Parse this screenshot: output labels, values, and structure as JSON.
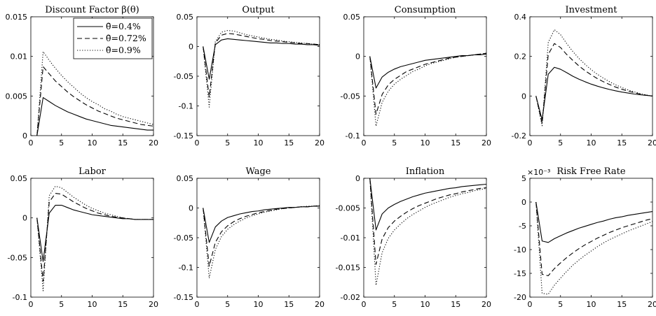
{
  "figure": {
    "layout": "2x4 grid of line charts"
  },
  "legend": {
    "position": "top-right of first panel",
    "entries": [
      {
        "label": "θ̄=0.4%",
        "style": "solid"
      },
      {
        "label": "θ̄=0.72%",
        "style": "dashed"
      },
      {
        "label": "θ̄=0.9%",
        "style": "dotted"
      }
    ]
  },
  "chart_data": [
    {
      "type": "line",
      "title": "Discount Factor β(θ)",
      "xlim": [
        0,
        20
      ],
      "ylim": [
        0,
        0.015
      ],
      "xticks": [
        0,
        5,
        10,
        15,
        20
      ],
      "xtick_labels": [
        "0",
        "5",
        "10",
        "15",
        "20"
      ],
      "yticks": [
        0,
        0.005,
        0.01,
        0.015
      ],
      "ytick_labels": [
        "0",
        "0.005",
        "0.01",
        "0.015"
      ],
      "x": [
        1,
        2,
        3,
        4,
        5,
        6,
        7,
        8,
        9,
        10,
        11,
        12,
        13,
        14,
        15,
        16,
        17,
        18,
        19,
        20
      ],
      "series": [
        {
          "name": "θ̄=0.4%",
          "style": "solid",
          "values": [
            0,
            0.0048,
            0.0043,
            0.0038,
            0.0034,
            0.003,
            0.0027,
            0.0024,
            0.0021,
            0.0019,
            0.0017,
            0.0015,
            0.0013,
            0.0012,
            0.0011,
            0.001,
            0.0009,
            0.0008,
            0.0007,
            0.0007
          ]
        },
        {
          "name": "θ̄=0.72%",
          "style": "dashed",
          "values": [
            0,
            0.0087,
            0.0078,
            0.0069,
            0.0062,
            0.0055,
            0.0049,
            0.0044,
            0.0039,
            0.0035,
            0.0031,
            0.0028,
            0.0025,
            0.0022,
            0.002,
            0.0018,
            0.0016,
            0.0014,
            0.0013,
            0.0012
          ]
        },
        {
          "name": "θ̄=0.9%",
          "style": "dotted",
          "values": [
            0,
            0.0106,
            0.0095,
            0.0085,
            0.0076,
            0.0068,
            0.0061,
            0.0054,
            0.0048,
            0.0043,
            0.0039,
            0.0034,
            0.0031,
            0.0027,
            0.0024,
            0.0022,
            0.002,
            0.0018,
            0.0016,
            0.0014
          ]
        }
      ]
    },
    {
      "type": "line",
      "title": "Output",
      "xlim": [
        0,
        20
      ],
      "ylim": [
        -0.15,
        0.05
      ],
      "xticks": [
        0,
        5,
        10,
        15,
        20
      ],
      "xtick_labels": [
        "0",
        "5",
        "10",
        "15",
        "20"
      ],
      "yticks": [
        -0.15,
        -0.1,
        -0.05,
        0,
        0.05
      ],
      "ytick_labels": [
        "-0.15",
        "-0.1",
        "-0.05",
        "0",
        "0.05"
      ],
      "x": [
        1,
        2,
        3,
        4,
        5,
        6,
        7,
        8,
        9,
        10,
        11,
        12,
        13,
        14,
        15,
        16,
        17,
        18,
        19,
        20
      ],
      "series": [
        {
          "name": "θ̄=0.4%",
          "style": "solid",
          "values": [
            0,
            -0.055,
            0.003,
            0.011,
            0.013,
            0.012,
            0.011,
            0.01,
            0.009,
            0.008,
            0.007,
            0.006,
            0.006,
            0.005,
            0.005,
            0.004,
            0.004,
            0.003,
            0.003,
            0.002
          ]
        },
        {
          "name": "θ̄=0.72%",
          "style": "dashed",
          "values": [
            0,
            -0.085,
            0.006,
            0.019,
            0.022,
            0.021,
            0.019,
            0.017,
            0.015,
            0.013,
            0.012,
            0.01,
            0.009,
            0.008,
            0.007,
            0.006,
            0.005,
            0.005,
            0.004,
            0.003
          ]
        },
        {
          "name": "θ̄=0.9%",
          "style": "dotted",
          "values": [
            0,
            -0.102,
            0.008,
            0.024,
            0.027,
            0.026,
            0.023,
            0.02,
            0.018,
            0.016,
            0.014,
            0.012,
            0.011,
            0.009,
            0.008,
            0.007,
            0.006,
            0.005,
            0.004,
            0.003
          ]
        }
      ]
    },
    {
      "type": "line",
      "title": "Consumption",
      "xlim": [
        0,
        20
      ],
      "ylim": [
        -0.1,
        0.05
      ],
      "xticks": [
        0,
        5,
        10,
        15,
        20
      ],
      "xtick_labels": [
        "0",
        "5",
        "10",
        "15",
        "20"
      ],
      "yticks": [
        -0.1,
        -0.05,
        0,
        0.05
      ],
      "ytick_labels": [
        "-0.1",
        "-0.05",
        "0",
        "0.05"
      ],
      "x": [
        1,
        2,
        3,
        4,
        5,
        6,
        7,
        8,
        9,
        10,
        11,
        12,
        13,
        14,
        15,
        16,
        17,
        18,
        19,
        20
      ],
      "series": [
        {
          "name": "θ̄=0.4%",
          "style": "solid",
          "values": [
            0,
            -0.04,
            -0.026,
            -0.02,
            -0.016,
            -0.013,
            -0.011,
            -0.009,
            -0.007,
            -0.005,
            -0.004,
            -0.003,
            -0.002,
            -0.001,
            0,
            0.001,
            0.001,
            0.002,
            0.002,
            0.003
          ]
        },
        {
          "name": "θ̄=0.72%",
          "style": "dashed",
          "values": [
            0,
            -0.073,
            -0.048,
            -0.036,
            -0.029,
            -0.024,
            -0.019,
            -0.016,
            -0.013,
            -0.01,
            -0.008,
            -0.006,
            -0.004,
            -0.002,
            -0.001,
            0,
            0.001,
            0.002,
            0.003,
            0.004
          ]
        },
        {
          "name": "θ̄=0.9%",
          "style": "dotted",
          "values": [
            0,
            -0.088,
            -0.058,
            -0.044,
            -0.035,
            -0.029,
            -0.024,
            -0.019,
            -0.016,
            -0.012,
            -0.009,
            -0.007,
            -0.005,
            -0.003,
            -0.001,
            0,
            0.001,
            0.002,
            0.003,
            0.004
          ]
        }
      ]
    },
    {
      "type": "line",
      "title": "Investment",
      "xlim": [
        0,
        20
      ],
      "ylim": [
        -0.2,
        0.4
      ],
      "xticks": [
        0,
        5,
        10,
        15,
        20
      ],
      "xtick_labels": [
        "0",
        "5",
        "10",
        "15",
        "20"
      ],
      "yticks": [
        -0.2,
        0,
        0.2,
        0.4
      ],
      "ytick_labels": [
        "-0.2",
        "0",
        "0.2",
        "0.4"
      ],
      "x": [
        1,
        2,
        3,
        4,
        5,
        6,
        7,
        8,
        9,
        10,
        11,
        12,
        13,
        14,
        15,
        16,
        17,
        18,
        19,
        20
      ],
      "series": [
        {
          "name": "θ̄=0.4%",
          "style": "solid",
          "values": [
            0,
            -0.12,
            0.11,
            0.145,
            0.135,
            0.118,
            0.1,
            0.085,
            0.072,
            0.06,
            0.05,
            0.041,
            0.033,
            0.026,
            0.02,
            0.015,
            0.01,
            0.006,
            0.003,
            0
          ]
        },
        {
          "name": "θ̄=0.72%",
          "style": "dashed",
          "values": [
            0,
            -0.14,
            0.21,
            0.265,
            0.245,
            0.21,
            0.18,
            0.152,
            0.128,
            0.107,
            0.088,
            0.072,
            0.058,
            0.045,
            0.034,
            0.025,
            0.017,
            0.01,
            0.004,
            0
          ]
        },
        {
          "name": "θ̄=0.9%",
          "style": "dotted",
          "values": [
            0,
            -0.15,
            0.27,
            0.335,
            0.31,
            0.265,
            0.225,
            0.19,
            0.16,
            0.133,
            0.11,
            0.09,
            0.072,
            0.056,
            0.043,
            0.031,
            0.021,
            0.012,
            0.005,
            0
          ]
        }
      ]
    },
    {
      "type": "line",
      "title": "Labor",
      "xlim": [
        0,
        20
      ],
      "ylim": [
        -0.1,
        0.05
      ],
      "xticks": [
        0,
        5,
        10,
        15,
        20
      ],
      "xtick_labels": [
        "0",
        "5",
        "10",
        "15",
        "20"
      ],
      "yticks": [
        -0.1,
        -0.05,
        0,
        0.05
      ],
      "ytick_labels": [
        "-0.1",
        "-0.05",
        "0",
        "0.05"
      ],
      "x": [
        1,
        2,
        3,
        4,
        5,
        6,
        7,
        8,
        9,
        10,
        11,
        12,
        13,
        14,
        15,
        16,
        17,
        18,
        19,
        20
      ],
      "series": [
        {
          "name": "θ̄=0.4%",
          "style": "solid",
          "values": [
            0,
            -0.055,
            0.006,
            0.016,
            0.016,
            0.013,
            0.01,
            0.008,
            0.006,
            0.004,
            0.003,
            0.002,
            0.001,
            0,
            -0.001,
            -0.001,
            -0.002,
            -0.002,
            -0.002,
            -0.002
          ]
        },
        {
          "name": "θ̄=0.72%",
          "style": "dashed",
          "values": [
            0,
            -0.08,
            0.02,
            0.031,
            0.03,
            0.025,
            0.02,
            0.016,
            0.012,
            0.009,
            0.006,
            0.004,
            0.002,
            0.001,
            0,
            -0.001,
            -0.002,
            -0.002,
            -0.002,
            -0.002
          ]
        },
        {
          "name": "θ̄=0.9%",
          "style": "dotted",
          "values": [
            0,
            -0.092,
            0.028,
            0.04,
            0.038,
            0.032,
            0.026,
            0.021,
            0.016,
            0.012,
            0.009,
            0.006,
            0.004,
            0.002,
            0,
            -0.001,
            -0.002,
            -0.002,
            -0.002,
            -0.002
          ]
        }
      ]
    },
    {
      "type": "line",
      "title": "Wage",
      "xlim": [
        0,
        20
      ],
      "ylim": [
        -0.15,
        0.05
      ],
      "xticks": [
        0,
        5,
        10,
        15,
        20
      ],
      "xtick_labels": [
        "0",
        "5",
        "10",
        "15",
        "20"
      ],
      "yticks": [
        -0.15,
        -0.1,
        -0.05,
        0,
        0.05
      ],
      "ytick_labels": [
        "-0.15",
        "-0.1",
        "-0.05",
        "0",
        "0.05"
      ],
      "x": [
        1,
        2,
        3,
        4,
        5,
        6,
        7,
        8,
        9,
        10,
        11,
        12,
        13,
        14,
        15,
        16,
        17,
        18,
        19,
        20
      ],
      "series": [
        {
          "name": "θ̄=0.4%",
          "style": "solid",
          "values": [
            0,
            -0.058,
            -0.032,
            -0.022,
            -0.016,
            -0.013,
            -0.01,
            -0.008,
            -0.006,
            -0.005,
            -0.003,
            -0.002,
            -0.001,
            0,
            0.001,
            0.001,
            0.002,
            0.002,
            0.003,
            0.003
          ]
        },
        {
          "name": "θ̄=0.72%",
          "style": "dashed",
          "values": [
            0,
            -0.098,
            -0.058,
            -0.04,
            -0.03,
            -0.023,
            -0.018,
            -0.014,
            -0.011,
            -0.008,
            -0.006,
            -0.004,
            -0.002,
            -0.001,
            0,
            0.001,
            0.002,
            0.002,
            0.003,
            0.004
          ]
        },
        {
          "name": "θ̄=0.9%",
          "style": "dotted",
          "values": [
            0,
            -0.118,
            -0.07,
            -0.048,
            -0.036,
            -0.028,
            -0.022,
            -0.017,
            -0.013,
            -0.01,
            -0.007,
            -0.005,
            -0.003,
            -0.001,
            0,
            0.001,
            0.002,
            0.003,
            0.003,
            0.004
          ]
        }
      ]
    },
    {
      "type": "line",
      "title": "Inflation",
      "xlim": [
        0,
        20
      ],
      "ylim": [
        -0.02,
        0
      ],
      "xticks": [
        0,
        5,
        10,
        15,
        20
      ],
      "xtick_labels": [
        "0",
        "5",
        "10",
        "15",
        "20"
      ],
      "yticks": [
        -0.02,
        -0.015,
        -0.01,
        -0.005,
        0
      ],
      "ytick_labels": [
        "-0.02",
        "-0.015",
        "-0.01",
        "-0.005",
        "0"
      ],
      "x": [
        1,
        2,
        3,
        4,
        5,
        6,
        7,
        8,
        9,
        10,
        11,
        12,
        13,
        14,
        15,
        16,
        17,
        18,
        19,
        20
      ],
      "series": [
        {
          "name": "θ̄=0.4%",
          "style": "solid",
          "values": [
            0,
            -0.0087,
            -0.006,
            -0.005,
            -0.0044,
            -0.0039,
            -0.0035,
            -0.0031,
            -0.0028,
            -0.0025,
            -0.0023,
            -0.0021,
            -0.0019,
            -0.0017,
            -0.0016,
            -0.0014,
            -0.0013,
            -0.0012,
            -0.0011,
            -0.001
          ]
        },
        {
          "name": "θ̄=0.72%",
          "style": "dashed",
          "values": [
            0,
            -0.0145,
            -0.0102,
            -0.0083,
            -0.0072,
            -0.0064,
            -0.0057,
            -0.0051,
            -0.0046,
            -0.0042,
            -0.0038,
            -0.0034,
            -0.0031,
            -0.0028,
            -0.0026,
            -0.0023,
            -0.0021,
            -0.0019,
            -0.0017,
            -0.0016
          ]
        },
        {
          "name": "θ̄=0.9%",
          "style": "dotted",
          "values": [
            0,
            -0.018,
            -0.0125,
            -0.0101,
            -0.0087,
            -0.0077,
            -0.0068,
            -0.0061,
            -0.0055,
            -0.0049,
            -0.0044,
            -0.004,
            -0.0036,
            -0.0032,
            -0.0029,
            -0.0026,
            -0.0024,
            -0.0021,
            -0.0019,
            -0.0017
          ]
        }
      ]
    },
    {
      "type": "line",
      "title": "Risk Free Rate",
      "scale_label": "×10⁻³",
      "xlim": [
        0,
        20
      ],
      "ylim": [
        -20,
        5
      ],
      "xticks": [
        0,
        5,
        10,
        15,
        20
      ],
      "xtick_labels": [
        "0",
        "5",
        "10",
        "15",
        "20"
      ],
      "yticks": [
        -20,
        -15,
        -10,
        -5,
        0,
        5
      ],
      "ytick_labels": [
        "-20",
        "-15",
        "-10",
        "-5",
        "0",
        "5"
      ],
      "x": [
        1,
        2,
        3,
        4,
        5,
        6,
        7,
        8,
        9,
        10,
        11,
        12,
        13,
        14,
        15,
        16,
        17,
        18,
        19,
        20
      ],
      "series": [
        {
          "name": "θ̄=0.4%",
          "style": "solid",
          "values": [
            0,
            -8.2,
            -8.5,
            -7.7,
            -7.1,
            -6.5,
            -6,
            -5.5,
            -5.1,
            -4.7,
            -4.3,
            -4,
            -3.6,
            -3.3,
            -3.1,
            -2.8,
            -2.6,
            -2.4,
            -2.2,
            -2
          ]
        },
        {
          "name": "θ̄=0.72%",
          "style": "dashed",
          "values": [
            0,
            -15.2,
            -15.5,
            -14,
            -12.8,
            -11.7,
            -10.7,
            -9.8,
            -9,
            -8.3,
            -7.6,
            -7,
            -6.4,
            -5.9,
            -5.4,
            -5,
            -4.6,
            -4.2,
            -3.8,
            -3.5
          ]
        },
        {
          "name": "θ̄=0.9%",
          "style": "dotted",
          "values": [
            0,
            -19.2,
            -19.4,
            -17.5,
            -16,
            -14.6,
            -13.3,
            -12.2,
            -11.2,
            -10.3,
            -9.4,
            -8.6,
            -7.9,
            -7.3,
            -6.7,
            -6.1,
            -5.6,
            -5.1,
            -4.6,
            -4.1
          ]
        }
      ]
    }
  ]
}
